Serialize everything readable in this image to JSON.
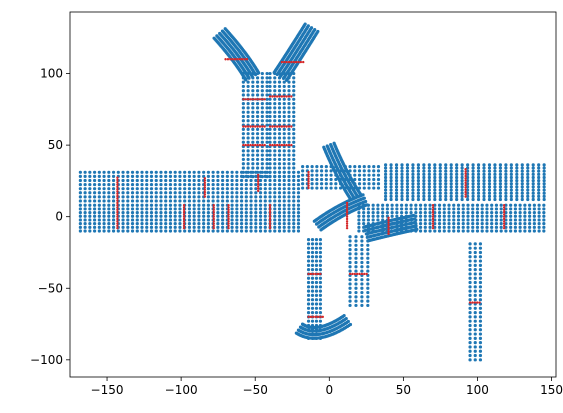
{
  "chart_data": {
    "type": "scatter",
    "title": "",
    "xlabel": "",
    "ylabel": "",
    "xlim": [
      -175,
      153
    ],
    "ylim": [
      -112,
      143
    ],
    "xticks": [
      -150,
      -100,
      -50,
      0,
      50,
      100,
      150
    ],
    "yticks": [
      -100,
      -50,
      0,
      50,
      100
    ],
    "xtick_labels": [
      "−150",
      "−100",
      "−50",
      "0",
      "50",
      "100",
      "150"
    ],
    "ytick_labels": [
      "−100",
      "−50",
      "0",
      "50",
      "100"
    ],
    "grid": false,
    "legend": "none",
    "series": [
      {
        "color": "#1f77b4",
        "marker_size": 1.6,
        "segments": [
          {
            "kind": "band",
            "x": [
              -168,
              -18
            ],
            "y": [
              11,
              31
            ],
            "rows": 8,
            "spacing": 3.2
          },
          {
            "kind": "band",
            "x": [
              -168,
              -18
            ],
            "y": [
              -10,
              8
            ],
            "rows": 8,
            "spacing": 3.2
          },
          {
            "kind": "band",
            "x": [
              -18,
              36
            ],
            "y": [
              20,
              35
            ],
            "rows": 6,
            "spacing": 3.2
          },
          {
            "kind": "band",
            "x": [
              20,
              145
            ],
            "y": [
              -10,
              8
            ],
            "rows": 8,
            "spacing": 3.2
          },
          {
            "kind": "cols",
            "x": [
              38,
              145
            ],
            "y": [
              12,
              38
            ],
            "cols": 30,
            "spacing": 2.2
          },
          {
            "kind": "band",
            "x": [
              -58,
              -42
            ],
            "y": [
              28,
              100
            ],
            "cols": 6,
            "spacing": 3.0
          },
          {
            "kind": "band",
            "x": [
              -40,
              -24
            ],
            "y": [
              28,
              100
            ],
            "cols": 6,
            "spacing": 3.0
          },
          {
            "kind": "curve",
            "pts": [
              [
                -52,
                98
              ],
              [
                -60,
                112
              ],
              [
                -74,
                128
              ]
            ],
            "w": 10
          },
          {
            "kind": "curve",
            "pts": [
              [
                -33,
                98
              ],
              [
                -24,
                112
              ],
              [
                -12,
                132
              ]
            ],
            "w": 10
          },
          {
            "kind": "band",
            "x": [
              -14,
              -6
            ],
            "y": [
              -85,
              -15
            ],
            "cols": 4,
            "spacing": 3.0
          },
          {
            "kind": "band",
            "x": [
              14,
              26
            ],
            "y": [
              -62,
              -12
            ],
            "cols": 4,
            "spacing": 3.0
          },
          {
            "kind": "curve",
            "pts": [
              [
                -20,
                -78
              ],
              [
                -8,
                -86
              ],
              [
                12,
                -72
              ]
            ],
            "w": 8
          },
          {
            "kind": "curve",
            "pts": [
              [
                25,
                -12
              ],
              [
                40,
                -8
              ],
              [
                58,
                -4
              ]
            ],
            "w": 10
          },
          {
            "kind": "band",
            "x": [
              95,
              102
            ],
            "y": [
              -100,
              -18
            ],
            "cols": 3,
            "spacing": 3.0
          },
          {
            "kind": "curve",
            "pts": [
              [
                0,
                50
              ],
              [
                8,
                30
              ],
              [
                18,
                14
              ]
            ],
            "w": 8
          },
          {
            "kind": "curve",
            "pts": [
              [
                -8,
                -6
              ],
              [
                8,
                6
              ],
              [
                24,
                12
              ]
            ],
            "w": 8
          }
        ]
      },
      {
        "color": "#d62728",
        "marker_size": 1.2,
        "segments": [
          {
            "kind": "vline",
            "x": -143,
            "y": [
              -8,
              28
            ]
          },
          {
            "kind": "vline",
            "x": -98,
            "y": [
              -8,
              8
            ]
          },
          {
            "kind": "vline",
            "x": -84,
            "y": [
              14,
              28
            ]
          },
          {
            "kind": "vline",
            "x": -78,
            "y": [
              -8,
              8
            ]
          },
          {
            "kind": "vline",
            "x": -68,
            "y": [
              -8,
              8
            ]
          },
          {
            "kind": "vline",
            "x": -40,
            "y": [
              -8,
              8
            ]
          },
          {
            "kind": "vline",
            "x": -14,
            "y": [
              20,
              32
            ]
          },
          {
            "kind": "vline",
            "x": -48,
            "y": [
              18,
              30
            ]
          },
          {
            "kind": "hline",
            "y": 82,
            "x": [
              -58,
              -42
            ]
          },
          {
            "kind": "hline",
            "y": 84,
            "x": [
              -40,
              -24
            ]
          },
          {
            "kind": "hline",
            "y": 63,
            "x": [
              -58,
              -42
            ]
          },
          {
            "kind": "hline",
            "y": 63,
            "x": [
              -40,
              -24
            ]
          },
          {
            "kind": "hline",
            "y": 50,
            "x": [
              -58,
              -42
            ]
          },
          {
            "kind": "hline",
            "y": 50,
            "x": [
              -40,
              -24
            ]
          },
          {
            "kind": "hline",
            "y": 110,
            "x": [
              -70,
              -55
            ]
          },
          {
            "kind": "hline",
            "y": 108,
            "x": [
              -32,
              -16
            ]
          },
          {
            "kind": "vline",
            "x": 70,
            "y": [
              -8,
              8
            ]
          },
          {
            "kind": "vline",
            "x": 92,
            "y": [
              14,
              34
            ]
          },
          {
            "kind": "vline",
            "x": 118,
            "y": [
              -8,
              8
            ]
          },
          {
            "kind": "hline",
            "y": -40,
            "x": [
              -14,
              -6
            ]
          },
          {
            "kind": "hline",
            "y": -40,
            "x": [
              14,
              26
            ]
          },
          {
            "kind": "hline",
            "y": -70,
            "x": [
              -14,
              -4
            ]
          },
          {
            "kind": "hline",
            "y": -60,
            "x": [
              95,
              102
            ]
          },
          {
            "kind": "vline",
            "x": 12,
            "y": [
              -8,
              10
            ]
          },
          {
            "kind": "vline",
            "x": 40,
            "y": [
              -12,
              0
            ]
          }
        ]
      }
    ]
  }
}
